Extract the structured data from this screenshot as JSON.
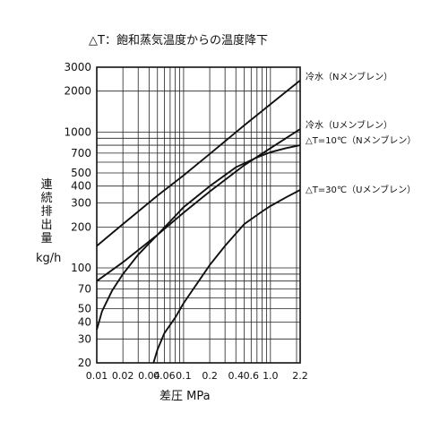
{
  "chart_data": {
    "type": "line",
    "title": "△T：飽和蒸気温度からの温度降下",
    "xlabel": "差圧 MPa",
    "ylabel_chars": [
      "連",
      "続",
      "排",
      "出",
      "量"
    ],
    "ylabel_unit": "kg/h",
    "x_scale": "log",
    "y_scale": "log",
    "xlim": [
      0.01,
      2.2
    ],
    "ylim": [
      20,
      3000
    ],
    "x_ticks": [
      {
        "value": 0.01,
        "label": "0.01"
      },
      {
        "value": 0.02,
        "label": "0.02"
      },
      {
        "value": 0.04,
        "label": "0.04"
      },
      {
        "value": 0.06,
        "label": "0.06"
      },
      {
        "value": 0.1,
        "label": "0.1"
      },
      {
        "value": 0.2,
        "label": "0.2"
      },
      {
        "value": 0.4,
        "label": "0.4"
      },
      {
        "value": 0.6,
        "label": "0.6"
      },
      {
        "value": 1.0,
        "label": "1.0"
      },
      {
        "value": 2.2,
        "label": "2.2"
      }
    ],
    "x_grid": [
      0.01,
      0.02,
      0.03,
      0.04,
      0.05,
      0.06,
      0.07,
      0.08,
      0.09,
      0.1,
      0.2,
      0.3,
      0.4,
      0.5,
      0.6,
      0.7,
      0.8,
      0.9,
      1.0,
      2.0,
      2.2
    ],
    "y_ticks": [
      {
        "value": 20,
        "label": "20"
      },
      {
        "value": 30,
        "label": "30"
      },
      {
        "value": 40,
        "label": "40"
      },
      {
        "value": 50,
        "label": "50"
      },
      {
        "value": 70,
        "label": "70"
      },
      {
        "value": 100,
        "label": "100"
      },
      {
        "value": 200,
        "label": "200"
      },
      {
        "value": 300,
        "label": "300"
      },
      {
        "value": 400,
        "label": "400"
      },
      {
        "value": 500,
        "label": "500"
      },
      {
        "value": 700,
        "label": "700"
      },
      {
        "value": 1000,
        "label": "1000"
      },
      {
        "value": 2000,
        "label": "2000"
      },
      {
        "value": 3000,
        "label": "3000"
      }
    ],
    "y_grid": [
      20,
      30,
      40,
      50,
      60,
      70,
      80,
      90,
      100,
      200,
      300,
      400,
      500,
      600,
      700,
      800,
      900,
      1000,
      2000,
      3000
    ],
    "series": [
      {
        "name": "冷水（Nメンブレン）",
        "x": [
          0.01,
          0.02,
          0.05,
          0.1,
          0.2,
          0.5,
          1.0,
          2.2
        ],
        "y": [
          145,
          210,
          340,
          480,
          690,
          1120,
          1600,
          2400
        ]
      },
      {
        "name": "冷水（Uメンブレン）",
        "x": [
          0.01,
          0.02,
          0.05,
          0.1,
          0.2,
          0.5,
          1.0,
          2.2
        ],
        "y": [
          80,
          110,
          175,
          255,
          365,
          570,
          760,
          1050
        ]
      },
      {
        "name": "△T=10℃（Nメンブレン）",
        "x": [
          0.01,
          0.0115,
          0.015,
          0.02,
          0.03,
          0.05,
          0.07,
          0.1,
          0.2,
          0.4,
          0.7,
          1.0,
          1.5,
          2.2
        ],
        "y": [
          35,
          48,
          68,
          90,
          125,
          175,
          220,
          280,
          400,
          550,
          650,
          710,
          760,
          800
        ]
      },
      {
        "name": "△T=30℃（Uメンブレン）",
        "x": [
          0.045,
          0.05,
          0.06,
          0.08,
          0.1,
          0.2,
          0.3,
          0.5,
          0.8,
          1.0,
          1.5,
          2.2
        ],
        "y": [
          20,
          25,
          33,
          43,
          55,
          105,
          145,
          210,
          260,
          285,
          330,
          375
        ]
      }
    ]
  }
}
